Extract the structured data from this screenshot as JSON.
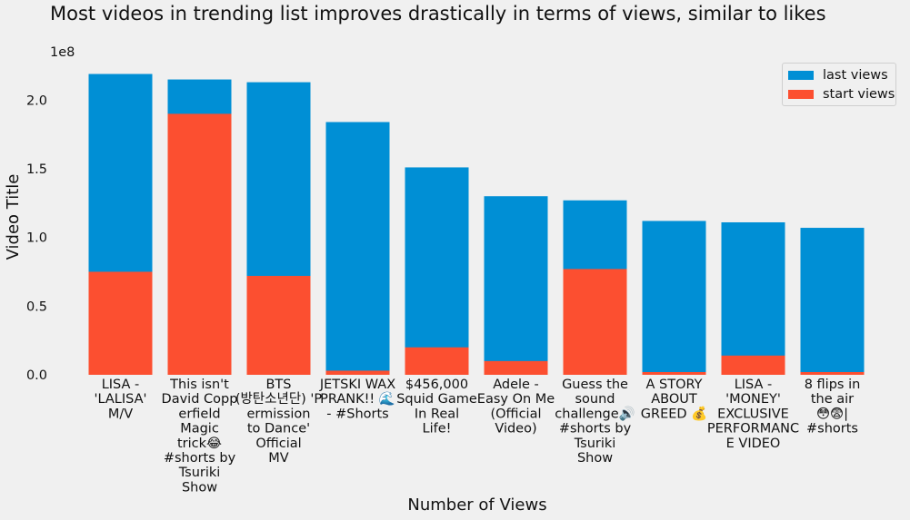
{
  "chart_data": {
    "type": "bar",
    "title": "Most videos in trending list improves drastically in terms of views, similar to likes",
    "xlabel": "Number of Views",
    "ylabel": "Video Title",
    "y_offset_label": "1e8",
    "ylim": [
      0,
      2.2
    ],
    "y_ticks": [
      "0.0",
      "0.5",
      "1.0",
      "1.5",
      "2.0"
    ],
    "grid": false,
    "legend_position": "top-right",
    "categories": [
      [
        "LISA -",
        "'LALISA'",
        "M/V"
      ],
      [
        "This isn't",
        "David Copp",
        "erfield",
        "Magic",
        "trick😂",
        "#shorts by",
        "Tsuriki",
        "Show"
      ],
      [
        "BTS",
        "(방탄소년단) 'P",
        "ermission",
        "to Dance'",
        "Official",
        "MV"
      ],
      [
        "JETSKI WAX",
        "PRANK!! 🌊",
        "- #Shorts"
      ],
      [
        "$456,000",
        "Squid Game",
        "In Real",
        "Life!"
      ],
      [
        "Adele -",
        "Easy On Me",
        "(Official",
        "Video)"
      ],
      [
        "Guess the",
        "sound",
        "challenge🔊",
        "#shorts by",
        "Tsuriki",
        "Show"
      ],
      [
        "A STORY",
        "ABOUT",
        "GREED 💰"
      ],
      [
        "LISA -",
        "'MONEY'",
        "EXCLUSIVE",
        "PERFORMANC",
        "E VIDEO"
      ],
      [
        "8 flips in",
        "the air",
        "😳😨|",
        "#shorts"
      ]
    ],
    "series": [
      {
        "name": "last views",
        "color": "#008fd5",
        "values": [
          2.19,
          2.15,
          2.13,
          1.84,
          1.51,
          1.3,
          1.27,
          1.12,
          1.11,
          1.07
        ]
      },
      {
        "name": "start views",
        "color": "#fc4f30",
        "values": [
          0.75,
          1.9,
          0.72,
          0.03,
          0.2,
          0.1,
          0.77,
          0.02,
          0.14,
          0.02
        ]
      }
    ]
  }
}
